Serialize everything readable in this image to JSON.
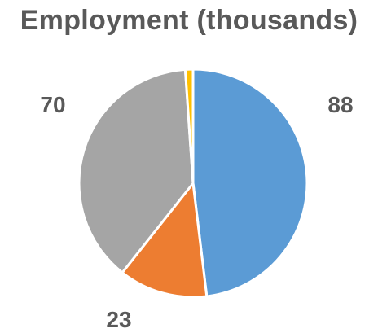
{
  "chart_data": {
    "type": "pie",
    "title": "Employment (thousands)",
    "categories": [
      "",
      "",
      "",
      ""
    ],
    "values": [
      88,
      23,
      70,
      2
    ],
    "data_labels": [
      "88",
      "23",
      "70",
      ""
    ],
    "colors": [
      "#5B9BD5",
      "#ED7D31",
      "#A5A5A5",
      "#FFC000"
    ],
    "legend": "none"
  }
}
